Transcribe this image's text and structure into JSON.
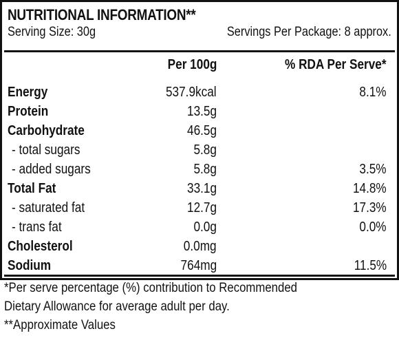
{
  "panel": {
    "title": "NUTRITIONAL INFORMATION**",
    "serving_size": "Serving Size: 30g",
    "servings_per_package": "Servings Per Package: 8 approx.",
    "columns": {
      "per_100g": "Per 100g",
      "rda": "% RDA Per Serve*"
    },
    "rows": [
      {
        "name": "Energy",
        "per_100g": "537.9kcal",
        "rda": "8.1%",
        "bold": true
      },
      {
        "name": "Protein",
        "per_100g": "13.5g",
        "rda": "",
        "bold": true
      },
      {
        "name": "Carbohydrate",
        "per_100g": "46.5g",
        "rda": "",
        "bold": true
      },
      {
        "name": "- total sugars",
        "per_100g": "5.8g",
        "rda": "",
        "bold": false
      },
      {
        "name": "- added sugars",
        "per_100g": "5.8g",
        "rda": "3.5%",
        "bold": false
      },
      {
        "name": "Total Fat",
        "per_100g": "33.1g",
        "rda": "14.8%",
        "bold": true
      },
      {
        "name": "- saturated fat",
        "per_100g": "12.7g",
        "rda": "17.3%",
        "bold": false
      },
      {
        "name": "- trans fat",
        "per_100g": "0.0g",
        "rda": "0.0%",
        "bold": false
      },
      {
        "name": "Cholesterol",
        "per_100g": "0.0mg",
        "rda": "",
        "bold": true
      },
      {
        "name": "Sodium",
        "per_100g": "764mg",
        "rda": "11.5%",
        "bold": true
      }
    ]
  },
  "footnotes": {
    "line1": "*Per serve percentage (%) contribution to Recommended",
    "line2": "Dietary Allowance for average adult per day.",
    "line3": "**Approximate Values"
  },
  "colors": {
    "text": "#111111",
    "border": "#111111",
    "background": "#ffffff"
  }
}
